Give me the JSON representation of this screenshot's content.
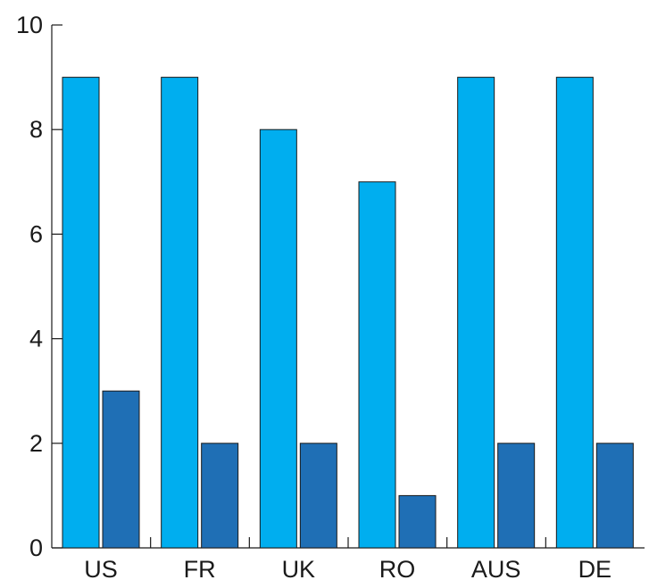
{
  "chart_data": {
    "type": "bar",
    "categories": [
      "US",
      "FR",
      "UK",
      "RO",
      "AUS",
      "DE"
    ],
    "series": [
      {
        "values": [
          9,
          9,
          8,
          7,
          9,
          9
        ],
        "color": "#00aeef"
      },
      {
        "values": [
          3,
          2,
          2,
          1,
          2,
          2
        ],
        "color": "#1f6fb5"
      }
    ],
    "yticks": [
      "0",
      "2",
      "4",
      "6",
      "8",
      "10"
    ],
    "ylim": [
      0,
      10
    ],
    "title": "",
    "xlabel": "",
    "ylabel": "",
    "grid": false,
    "legend": "none"
  }
}
